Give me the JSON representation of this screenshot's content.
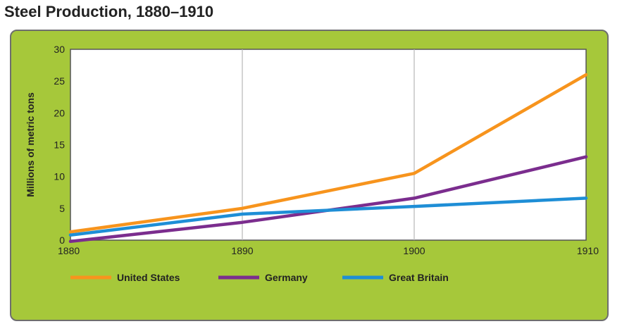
{
  "title": "Steel Production, 1880–1910",
  "chart_data": {
    "type": "line",
    "title": "Steel Production, 1880–1910",
    "xlabel": "",
    "ylabel": "Millions of metric tons",
    "x": [
      1880,
      1890,
      1900,
      1910
    ],
    "xlim": [
      1880,
      1910
    ],
    "ylim": [
      0,
      30
    ],
    "xticks": [
      "1880",
      "1890",
      "1900",
      "1910"
    ],
    "yticks": [
      "0",
      "5",
      "10",
      "15",
      "20",
      "25",
      "30"
    ],
    "grid": true,
    "legend_position": "bottom",
    "series": [
      {
        "name": "United States",
        "color": "#f7941d",
        "values": [
          1.3,
          5.0,
          10.5,
          26.0
        ]
      },
      {
        "name": "Germany",
        "color": "#7b2d8e",
        "values": [
          -0.2,
          2.8,
          6.6,
          13.1
        ]
      },
      {
        "name": "Great Britain",
        "color": "#1e8ed6",
        "values": [
          0.8,
          4.1,
          5.3,
          6.6
        ]
      }
    ]
  }
}
